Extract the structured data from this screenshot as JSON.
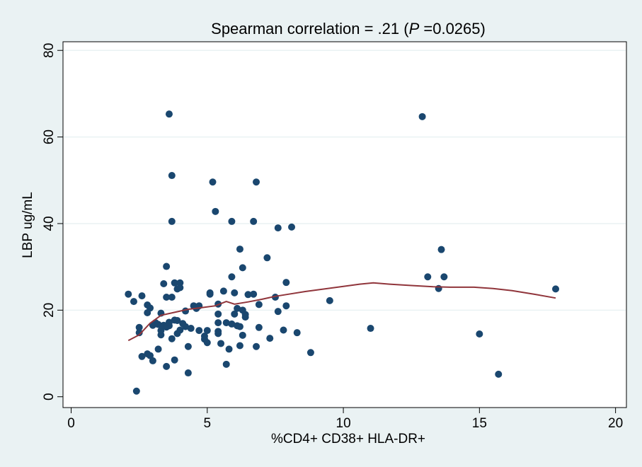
{
  "chart_data": {
    "type": "scatter",
    "title": {
      "prefix": "Spearman correlation =   .21 (",
      "p_symbol": "P",
      "suffix": " =0.0265)"
    },
    "xlabel": "%CD4+ CD38+ HLA-DR+",
    "ylabel": "LBP ug/mL",
    "xlim": [
      -0.3,
      20.4
    ],
    "ylim": [
      -2.5,
      82
    ],
    "xticks": [
      0,
      5,
      10,
      15,
      20
    ],
    "yticks": [
      0,
      20,
      40,
      60,
      80
    ],
    "grid": "horizontal",
    "colors": {
      "background": "#eaf2f3",
      "plot": "#ffffff",
      "points": "#1a476f",
      "fit_line": "#90353b",
      "grid": "#eaf2f3"
    },
    "series": [
      {
        "kind": "points",
        "points": [
          [
            2.1,
            23.7
          ],
          [
            2.3,
            22.0
          ],
          [
            2.4,
            1.3
          ],
          [
            2.5,
            16.0
          ],
          [
            2.5,
            14.8
          ],
          [
            2.6,
            23.3
          ],
          [
            2.6,
            9.3
          ],
          [
            2.8,
            9.9
          ],
          [
            2.8,
            19.4
          ],
          [
            2.8,
            21.2
          ],
          [
            2.9,
            20.5
          ],
          [
            2.9,
            9.5
          ],
          [
            3.0,
            8.3
          ],
          [
            3.0,
            16.5
          ],
          [
            3.1,
            17.1
          ],
          [
            3.2,
            11.0
          ],
          [
            3.2,
            16.7
          ],
          [
            3.3,
            14.3
          ],
          [
            3.3,
            15.3
          ],
          [
            3.3,
            19.3
          ],
          [
            3.4,
            16.5
          ],
          [
            3.4,
            26.1
          ],
          [
            3.5,
            30.1
          ],
          [
            3.5,
            23.0
          ],
          [
            3.5,
            16.1
          ],
          [
            3.5,
            7.0
          ],
          [
            3.6,
            65.3
          ],
          [
            3.6,
            16.4
          ],
          [
            3.6,
            17.2
          ],
          [
            3.7,
            51.1
          ],
          [
            3.7,
            40.5
          ],
          [
            3.7,
            13.4
          ],
          [
            3.7,
            23.0
          ],
          [
            3.8,
            26.3
          ],
          [
            3.8,
            17.7
          ],
          [
            3.8,
            8.5
          ],
          [
            3.9,
            24.9
          ],
          [
            3.9,
            14.6
          ],
          [
            3.9,
            17.6
          ],
          [
            4.0,
            26.3
          ],
          [
            4.0,
            15.4
          ],
          [
            4.0,
            25.2
          ],
          [
            4.1,
            16.9
          ],
          [
            4.2,
            19.8
          ],
          [
            4.2,
            16.2
          ],
          [
            4.3,
            5.5
          ],
          [
            4.3,
            11.6
          ],
          [
            4.4,
            15.8
          ],
          [
            4.5,
            21.0
          ],
          [
            4.6,
            20.4
          ],
          [
            4.7,
            15.3
          ],
          [
            4.7,
            21.0
          ],
          [
            4.9,
            14.0
          ],
          [
            4.9,
            13.3
          ],
          [
            5.0,
            12.5
          ],
          [
            5.0,
            15.3
          ],
          [
            5.1,
            23.7
          ],
          [
            5.1,
            24.0
          ],
          [
            5.2,
            49.6
          ],
          [
            5.3,
            42.8
          ],
          [
            5.4,
            21.4
          ],
          [
            5.4,
            19.1
          ],
          [
            5.4,
            17.1
          ],
          [
            5.4,
            15.1
          ],
          [
            5.4,
            14.6
          ],
          [
            5.5,
            12.3
          ],
          [
            5.6,
            24.4
          ],
          [
            5.7,
            7.5
          ],
          [
            5.7,
            17.1
          ],
          [
            5.8,
            11.0
          ],
          [
            5.9,
            40.5
          ],
          [
            5.9,
            27.7
          ],
          [
            5.9,
            16.8
          ],
          [
            6.0,
            19.1
          ],
          [
            6.0,
            24.0
          ],
          [
            6.1,
            16.4
          ],
          [
            6.1,
            20.4
          ],
          [
            6.2,
            34.1
          ],
          [
            6.2,
            11.8
          ],
          [
            6.2,
            16.2
          ],
          [
            6.3,
            29.8
          ],
          [
            6.3,
            14.2
          ],
          [
            6.3,
            20.0
          ],
          [
            6.4,
            19.0
          ],
          [
            6.4,
            18.4
          ],
          [
            6.5,
            23.6
          ],
          [
            6.7,
            23.7
          ],
          [
            6.7,
            40.5
          ],
          [
            6.8,
            49.6
          ],
          [
            6.8,
            11.6
          ],
          [
            6.9,
            16.0
          ],
          [
            6.9,
            21.3
          ],
          [
            7.2,
            32.1
          ],
          [
            7.3,
            13.5
          ],
          [
            7.5,
            23.0
          ],
          [
            7.6,
            19.7
          ],
          [
            7.6,
            39.0
          ],
          [
            7.8,
            15.4
          ],
          [
            7.9,
            21.0
          ],
          [
            7.9,
            26.4
          ],
          [
            8.1,
            39.2
          ],
          [
            8.3,
            14.8
          ],
          [
            8.8,
            10.2
          ],
          [
            9.5,
            22.2
          ],
          [
            11.0,
            15.8
          ],
          [
            12.9,
            64.7
          ],
          [
            13.1,
            27.7
          ],
          [
            13.5,
            25.0
          ],
          [
            13.6,
            34.0
          ],
          [
            13.7,
            27.7
          ],
          [
            15.0,
            14.5
          ],
          [
            15.7,
            5.2
          ],
          [
            17.8,
            24.9
          ]
        ]
      },
      {
        "kind": "lowess",
        "points": [
          [
            2.1,
            13.0
          ],
          [
            2.5,
            14.3
          ],
          [
            2.9,
            17.0
          ],
          [
            3.3,
            18.8
          ],
          [
            3.8,
            19.5
          ],
          [
            4.3,
            20.2
          ],
          [
            4.8,
            20.6
          ],
          [
            5.3,
            21.0
          ],
          [
            5.7,
            22.0
          ],
          [
            6.0,
            21.4
          ],
          [
            6.5,
            21.9
          ],
          [
            7.0,
            22.5
          ],
          [
            7.5,
            23.2
          ],
          [
            8.0,
            23.7
          ],
          [
            8.6,
            24.3
          ],
          [
            9.3,
            24.9
          ],
          [
            10.0,
            25.5
          ],
          [
            10.6,
            26.0
          ],
          [
            11.1,
            26.3
          ],
          [
            11.7,
            26.0
          ],
          [
            12.5,
            25.7
          ],
          [
            13.3,
            25.4
          ],
          [
            14.0,
            25.3
          ],
          [
            14.8,
            25.3
          ],
          [
            15.5,
            25.0
          ],
          [
            16.2,
            24.5
          ],
          [
            17.0,
            23.7
          ],
          [
            17.8,
            22.8
          ]
        ]
      }
    ]
  }
}
